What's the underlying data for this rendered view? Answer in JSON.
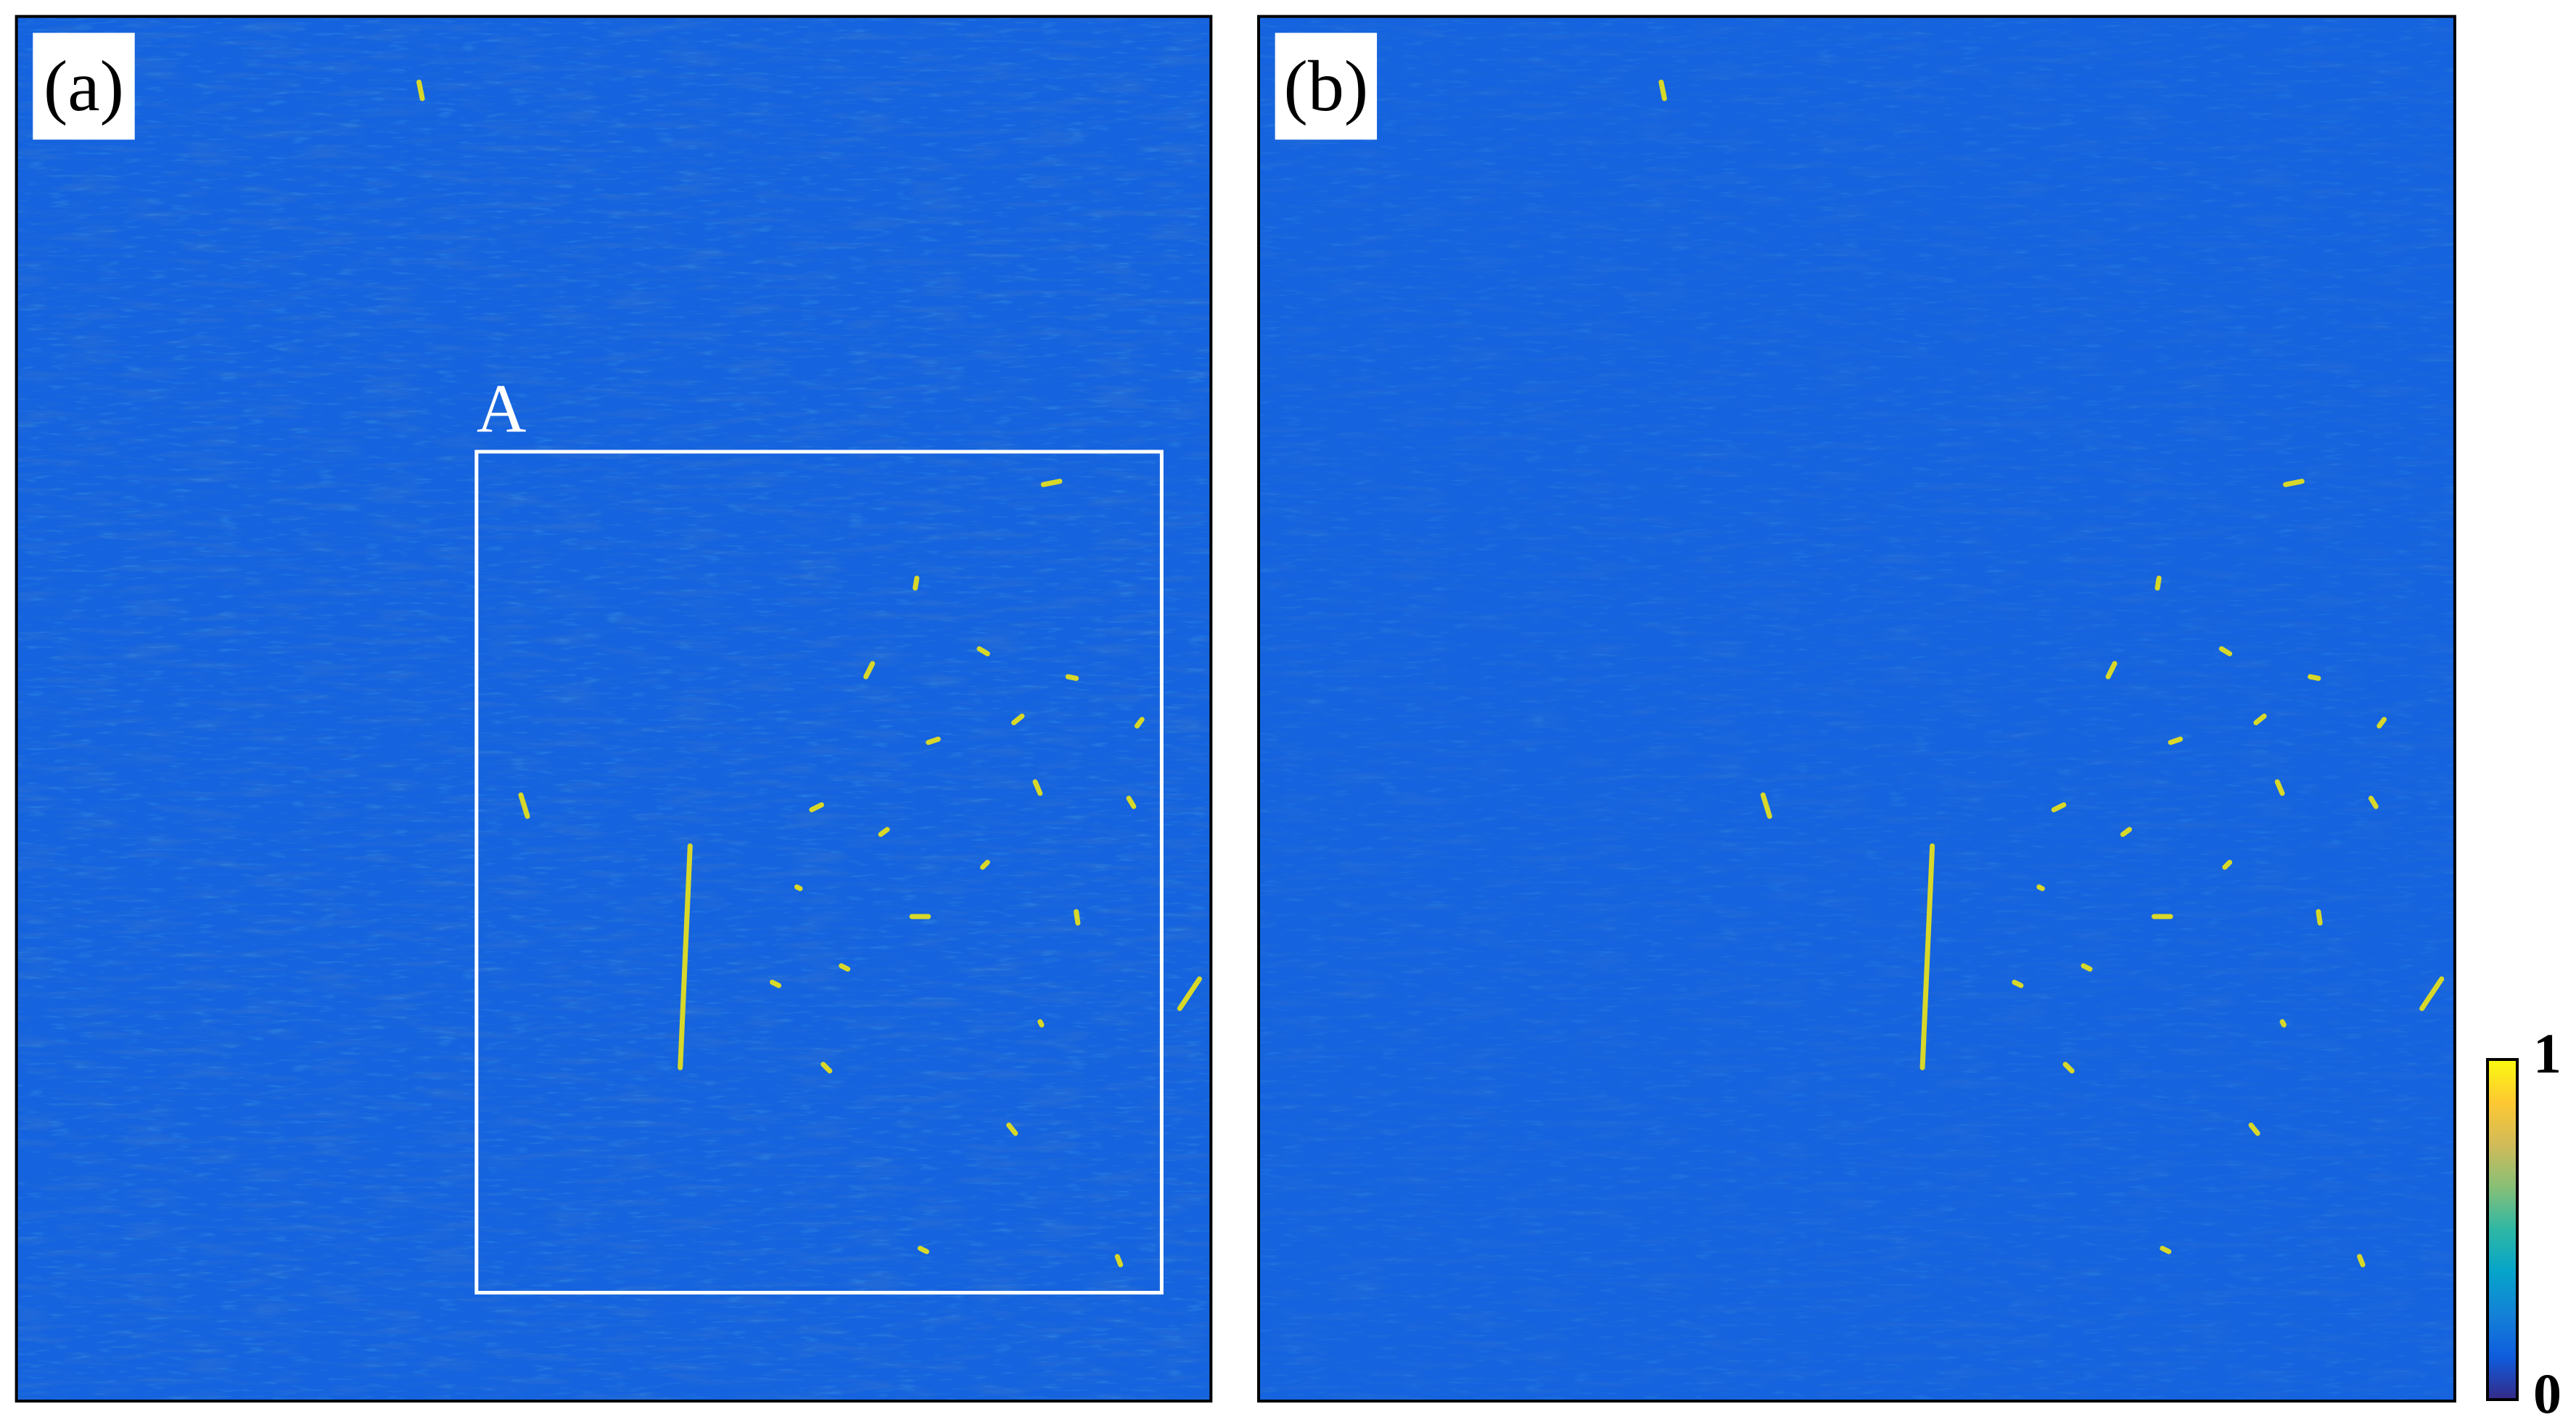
{
  "panels": [
    {
      "label": "(a)",
      "annotation": "A"
    },
    {
      "label": "(b)"
    }
  ],
  "colorbar": {
    "lim": [
      0,
      1
    ],
    "ticks": [
      0,
      1
    ],
    "colors": [
      "#352a87",
      "#0f5cdd",
      "#1481d6",
      "#06a4ca",
      "#2eb7a4",
      "#87bf77",
      "#d1bb59",
      "#fec832",
      "#f9fb0e"
    ]
  }
}
